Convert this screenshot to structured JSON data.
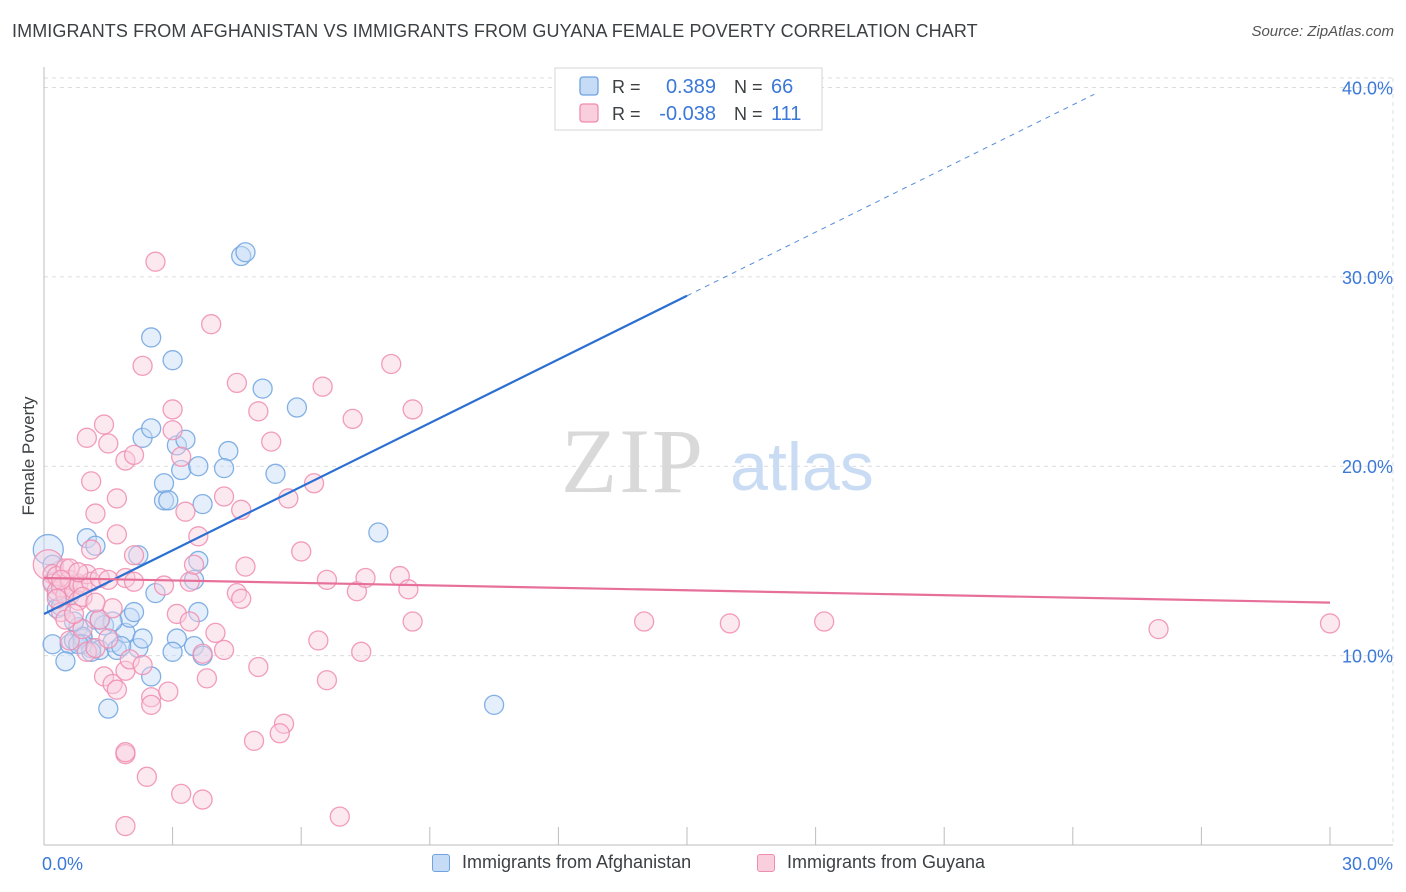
{
  "title": "IMMIGRANTS FROM AFGHANISTAN VS IMMIGRANTS FROM GUYANA FEMALE POVERTY CORRELATION CHART",
  "source": "Source: ZipAtlas.com",
  "watermark": {
    "zip": "ZIP",
    "atlas": "atlas"
  },
  "colors": {
    "blue": "#6fa3e0",
    "blue_fill": "#c5dbf6",
    "blue_line": "#2a6fd1",
    "pink": "#f08cb0",
    "pink_fill": "#f9cfdd",
    "pink_line": "#e7709a",
    "axis_label": "#3b78d8",
    "grid": "#dadce0"
  },
  "chart_data": {
    "type": "scatter",
    "xlabel": "",
    "ylabel": "Female Poverty",
    "xlim": [
      0,
      30
    ],
    "ylim": [
      0,
      40.5
    ],
    "x_tick_labels": [
      "0.0%",
      "30.0%"
    ],
    "y_ticks": [
      10,
      20,
      30,
      40
    ],
    "y_tick_labels": [
      "10.0%",
      "20.0%",
      "30.0%",
      "40.0%"
    ],
    "legend": [
      {
        "swatch": "blue",
        "r_label": "R =",
        "r_value": "0.389",
        "n_label": "N =",
        "n_value": "66"
      },
      {
        "swatch": "pink",
        "r_label": "R =",
        "r_value": "-0.038",
        "n_label": "N =",
        "n_value": "111"
      }
    ],
    "series": [
      {
        "name": "Immigrants from Afghanistan",
        "color": "blue",
        "trend": {
          "x0": 0,
          "y0": 12.2,
          "x1": 15,
          "y1": 29.0,
          "dash_to_x": 24.5
        },
        "points": [
          [
            0.1,
            15.6,
            2
          ],
          [
            0.2,
            14.8,
            1
          ],
          [
            0.2,
            13.9,
            1
          ],
          [
            0.3,
            13.2,
            1
          ],
          [
            0.3,
            12.5,
            1
          ],
          [
            0.2,
            10.6,
            1
          ],
          [
            0.6,
            10.6,
            1
          ],
          [
            0.5,
            9.7,
            1
          ],
          [
            0.7,
            10.8,
            1
          ],
          [
            0.8,
            11.5,
            1
          ],
          [
            0.9,
            10.9,
            1
          ],
          [
            1.1,
            10.4,
            1
          ],
          [
            1.2,
            11.9,
            1
          ],
          [
            1.3,
            10.3,
            1
          ],
          [
            1.4,
            11.6,
            1
          ],
          [
            1.6,
            10.7,
            1
          ],
          [
            1.7,
            10.3,
            1
          ],
          [
            1.9,
            11.2,
            1
          ],
          [
            2.2,
            10.4,
            1
          ],
          [
            2.0,
            12.0,
            1
          ],
          [
            2.1,
            12.3,
            1
          ],
          [
            1.6,
            11.8,
            1
          ],
          [
            1.3,
            11.9,
            1
          ],
          [
            1.5,
            7.2,
            1
          ],
          [
            0.9,
            11.0,
            1
          ],
          [
            0.9,
            10.6,
            1
          ],
          [
            0.6,
            13.2,
            1
          ],
          [
            0.7,
            11.8,
            1
          ],
          [
            1.0,
            16.2,
            1
          ],
          [
            1.2,
            15.8,
            1
          ],
          [
            2.2,
            15.3,
            1
          ],
          [
            2.3,
            10.9,
            1
          ],
          [
            2.5,
            8.9,
            1
          ],
          [
            2.6,
            13.3,
            1
          ],
          [
            2.8,
            18.2,
            1
          ],
          [
            2.8,
            19.1,
            1
          ],
          [
            2.3,
            21.5,
            1
          ],
          [
            2.5,
            22.0,
            1
          ],
          [
            2.5,
            26.8,
            1
          ],
          [
            2.9,
            18.2,
            1
          ],
          [
            3.0,
            25.6,
            1
          ],
          [
            3.1,
            21.1,
            1
          ],
          [
            3.2,
            19.8,
            1
          ],
          [
            3.3,
            21.4,
            1
          ],
          [
            3.1,
            10.9,
            1
          ],
          [
            3.0,
            10.2,
            1
          ],
          [
            3.5,
            10.5,
            1
          ],
          [
            3.7,
            10.0,
            1
          ],
          [
            3.6,
            12.3,
            1
          ],
          [
            3.6,
            15.0,
            1
          ],
          [
            3.5,
            14.0,
            1
          ],
          [
            3.7,
            18.0,
            1
          ],
          [
            3.6,
            20.0,
            1
          ],
          [
            4.3,
            20.8,
            1
          ],
          [
            4.2,
            19.9,
            1
          ],
          [
            4.6,
            31.1,
            1
          ],
          [
            4.7,
            31.3,
            1
          ],
          [
            5.1,
            24.1,
            1
          ],
          [
            5.4,
            19.6,
            1
          ],
          [
            5.9,
            23.1,
            1
          ],
          [
            7.8,
            16.5,
            1
          ],
          [
            10.5,
            7.4,
            1
          ],
          [
            1.1,
            10.2,
            1
          ],
          [
            0.4,
            12.6,
            1
          ],
          [
            0.8,
            10.6,
            1
          ],
          [
            1.8,
            10.5,
            1
          ]
        ]
      },
      {
        "name": "Immigrants from Guyana",
        "color": "pink",
        "trend": {
          "x0": 0,
          "y0": 14.1,
          "x1": 30,
          "y1": 12.8
        },
        "points": [
          [
            0.1,
            14.8,
            2
          ],
          [
            0.2,
            14.3,
            1
          ],
          [
            0.2,
            13.8,
            1
          ],
          [
            0.3,
            13.4,
            1
          ],
          [
            0.3,
            14.2,
            1
          ],
          [
            0.4,
            13.6,
            1
          ],
          [
            0.5,
            14.6,
            1
          ],
          [
            0.5,
            13.2,
            1
          ],
          [
            0.6,
            14.0,
            1
          ],
          [
            0.7,
            13.5,
            1
          ],
          [
            0.8,
            13.8,
            1
          ],
          [
            0.8,
            12.9,
            1
          ],
          [
            0.9,
            13.7,
            1
          ],
          [
            1.0,
            14.3,
            1
          ],
          [
            1.1,
            13.9,
            1
          ],
          [
            0.4,
            12.3,
            1
          ],
          [
            0.5,
            11.9,
            1
          ],
          [
            0.6,
            10.8,
            1
          ],
          [
            0.9,
            11.4,
            1
          ],
          [
            1.0,
            10.2,
            1
          ],
          [
            1.2,
            10.4,
            1
          ],
          [
            1.3,
            11.9,
            1
          ],
          [
            1.5,
            10.9,
            1
          ],
          [
            1.6,
            12.5,
            1
          ],
          [
            1.1,
            15.6,
            1
          ],
          [
            1.2,
            17.5,
            1
          ],
          [
            1.1,
            19.2,
            1
          ],
          [
            1.0,
            21.5,
            1
          ],
          [
            1.4,
            22.2,
            1
          ],
          [
            1.5,
            21.2,
            1
          ],
          [
            1.7,
            18.3,
            1
          ],
          [
            1.7,
            16.4,
            1
          ],
          [
            1.9,
            20.3,
            1
          ],
          [
            1.9,
            14.1,
            1
          ],
          [
            2.1,
            20.6,
            1
          ],
          [
            2.1,
            15.3,
            1
          ],
          [
            2.3,
            25.3,
            1
          ],
          [
            2.6,
            30.8,
            1
          ],
          [
            3.0,
            23.0,
            1
          ],
          [
            3.0,
            21.9,
            1
          ],
          [
            3.2,
            20.5,
            1
          ],
          [
            3.3,
            17.6,
            1
          ],
          [
            3.4,
            13.9,
            1
          ],
          [
            3.5,
            14.8,
            1
          ],
          [
            3.6,
            16.3,
            1
          ],
          [
            3.9,
            27.5,
            1
          ],
          [
            4.2,
            18.4,
            1
          ],
          [
            4.5,
            24.4,
            1
          ],
          [
            4.6,
            17.7,
            1
          ],
          [
            4.7,
            14.7,
            1
          ],
          [
            4.5,
            13.3,
            1
          ],
          [
            4.6,
            13.0,
            1
          ],
          [
            5.0,
            22.9,
            1
          ],
          [
            5.3,
            21.3,
            1
          ],
          [
            5.7,
            18.3,
            1
          ],
          [
            6.0,
            15.5,
            1
          ],
          [
            6.3,
            19.1,
            1
          ],
          [
            6.5,
            24.2,
            1
          ],
          [
            6.6,
            14.0,
            1
          ],
          [
            7.2,
            22.5,
            1
          ],
          [
            7.3,
            13.4,
            1
          ],
          [
            7.5,
            14.1,
            1
          ],
          [
            8.1,
            25.4,
            1
          ],
          [
            8.3,
            14.2,
            1
          ],
          [
            8.5,
            13.5,
            1
          ],
          [
            8.6,
            23.0,
            1
          ],
          [
            1.4,
            8.9,
            1
          ],
          [
            1.6,
            8.5,
            1
          ],
          [
            1.7,
            8.2,
            1
          ],
          [
            1.9,
            9.2,
            1
          ],
          [
            2.0,
            9.8,
            1
          ],
          [
            2.3,
            9.5,
            1
          ],
          [
            2.5,
            7.8,
            1
          ],
          [
            2.5,
            7.4,
            1
          ],
          [
            2.9,
            8.1,
            1
          ],
          [
            3.1,
            12.2,
            1
          ],
          [
            3.4,
            11.8,
            1
          ],
          [
            3.7,
            10.1,
            1
          ],
          [
            3.8,
            8.8,
            1
          ],
          [
            4.0,
            11.2,
            1
          ],
          [
            4.2,
            10.3,
            1
          ],
          [
            5.0,
            9.4,
            1
          ],
          [
            5.6,
            6.4,
            1
          ],
          [
            5.5,
            5.9,
            1
          ],
          [
            4.9,
            5.5,
            1
          ],
          [
            1.9,
            4.8,
            1
          ],
          [
            1.9,
            4.9,
            1
          ],
          [
            2.4,
            3.6,
            1
          ],
          [
            3.2,
            2.7,
            1
          ],
          [
            3.7,
            2.4,
            1
          ],
          [
            1.9,
            1.0,
            1
          ],
          [
            6.6,
            8.7,
            1
          ],
          [
            7.4,
            10.2,
            1
          ],
          [
            8.6,
            11.8,
            1
          ],
          [
            6.4,
            10.8,
            1
          ],
          [
            6.9,
            1.5,
            1
          ],
          [
            14.0,
            11.8,
            1
          ],
          [
            16.0,
            11.7,
            1
          ],
          [
            18.2,
            11.8,
            1
          ],
          [
            26.0,
            11.4,
            1
          ],
          [
            30.0,
            11.7,
            1
          ],
          [
            0.6,
            14.6,
            1
          ],
          [
            0.7,
            12.2,
            1
          ],
          [
            1.3,
            14.1,
            1
          ],
          [
            2.1,
            13.9,
            1
          ],
          [
            0.3,
            13.0,
            1
          ],
          [
            0.9,
            13.1,
            1
          ],
          [
            1.5,
            14.0,
            1
          ],
          [
            0.4,
            14.0,
            1
          ],
          [
            2.8,
            13.7,
            1
          ],
          [
            1.2,
            12.8,
            1
          ],
          [
            0.8,
            14.4,
            1
          ]
        ]
      }
    ]
  }
}
